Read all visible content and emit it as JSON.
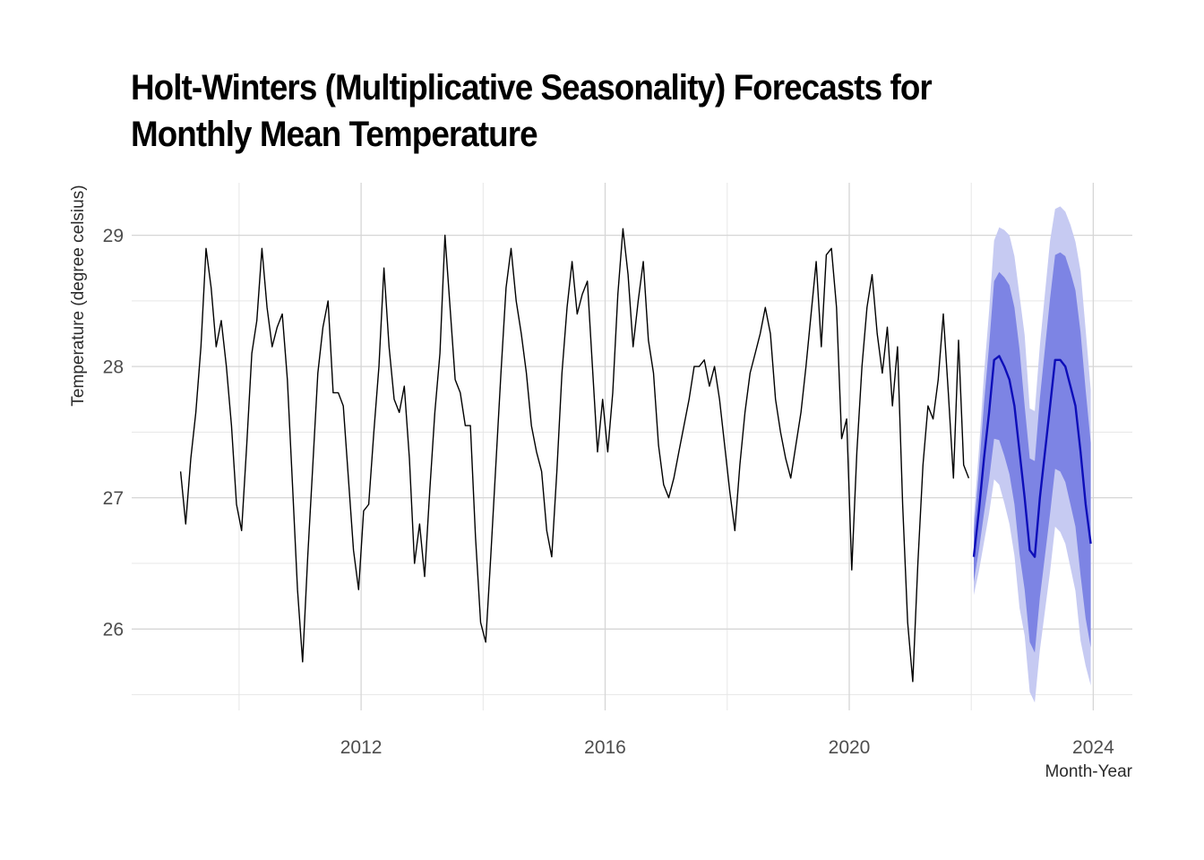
{
  "title": {
    "line1": "Holt-Winters (Multiplicative Seasonality) Forecasts for",
    "line2": "Monthly Mean Temperature",
    "full": "Holt-Winters (Multiplicative Seasonality) Forecasts for Monthly Mean Temperature"
  },
  "x_axis": {
    "title": "Month-Year",
    "tick_labels": [
      "2012",
      "2016",
      "2020",
      "2024"
    ],
    "tick_years": [
      2012,
      2016,
      2020,
      2024
    ],
    "minor_grid_years": [
      2010,
      2014,
      2018,
      2022
    ]
  },
  "y_axis": {
    "title": "Temperature (degree celsius)",
    "tick_labels": [
      "26",
      "27",
      "28",
      "29"
    ],
    "tick_values": [
      26,
      27,
      28,
      29
    ],
    "minor_grid_values": [
      25.5,
      26.5,
      27.5,
      28.5
    ]
  },
  "chart_data": {
    "type": "line",
    "title": "Holt-Winters (Multiplicative Seasonality) Forecasts for Monthly Mean Temperature",
    "xlabel": "Month-Year",
    "ylabel": "Temperature (degree celsius)",
    "xlim": [
      2008.24,
      2024.64
    ],
    "ylim": [
      25.38,
      29.4
    ],
    "grid": "on",
    "legend": "none",
    "x_ticks": [
      2012,
      2016,
      2020,
      2024
    ],
    "y_ticks": [
      26,
      27,
      28,
      29
    ],
    "historical": {
      "name": "observed-monthly-mean-temperature",
      "start": "2009-01",
      "frequency": "monthly",
      "values": [
        27.2,
        26.8,
        27.3,
        27.65,
        28.15,
        28.9,
        28.6,
        28.15,
        28.35,
        28.0,
        27.55,
        26.95,
        26.75,
        27.4,
        28.1,
        28.35,
        28.9,
        28.45,
        28.15,
        28.3,
        28.4,
        27.9,
        27.1,
        26.3,
        25.75,
        26.55,
        27.25,
        27.95,
        28.3,
        28.5,
        27.8,
        27.8,
        27.7,
        27.15,
        26.6,
        26.3,
        26.9,
        26.95,
        27.5,
        28.0,
        28.75,
        28.15,
        27.75,
        27.65,
        27.85,
        27.3,
        26.5,
        26.8,
        26.4,
        27.05,
        27.65,
        28.1,
        29.0,
        28.45,
        27.9,
        27.8,
        27.55,
        27.55,
        26.7,
        26.05,
        25.9,
        26.55,
        27.25,
        27.95,
        28.6,
        28.9,
        28.5,
        28.25,
        27.95,
        27.55,
        27.35,
        27.2,
        26.75,
        26.55,
        27.2,
        27.95,
        28.45,
        28.8,
        28.4,
        28.55,
        28.65,
        28.0,
        27.35,
        27.75,
        27.35,
        27.8,
        28.55,
        29.05,
        28.7,
        28.15,
        28.5,
        28.8,
        28.2,
        27.95,
        27.4,
        27.1,
        27.0,
        27.15,
        27.35,
        27.55,
        27.75,
        28.0,
        28.0,
        28.05,
        27.85,
        28.0,
        27.75,
        27.4,
        27.05,
        26.75,
        27.25,
        27.65,
        27.95,
        28.1,
        28.25,
        28.45,
        28.25,
        27.75,
        27.5,
        27.3,
        27.15,
        27.4,
        27.65,
        28.0,
        28.4,
        28.8,
        28.15,
        28.85,
        28.9,
        28.45,
        27.45,
        27.6,
        26.45,
        27.35,
        28.0,
        28.45,
        28.7,
        28.25,
        27.95,
        28.3,
        27.7,
        28.15,
        26.95,
        26.05,
        25.6,
        26.5,
        27.25,
        27.7,
        27.6,
        27.9,
        28.4,
        27.8,
        27.15,
        28.2,
        27.25,
        27.15
      ]
    },
    "forecast": {
      "name": "holt-winters-forecast",
      "start": "2022-01",
      "frequency": "monthly",
      "mean": [
        26.55,
        26.9,
        27.3,
        27.65,
        28.05,
        28.08,
        28.0,
        27.9,
        27.7,
        27.35,
        27.0,
        26.6,
        26.55,
        27.0,
        27.35,
        27.7,
        28.05,
        28.05,
        28.0,
        27.85,
        27.7,
        27.35,
        26.95,
        26.65
      ],
      "lo80": [
        26.36,
        26.6,
        26.88,
        27.14,
        27.45,
        27.44,
        27.32,
        27.18,
        26.95,
        26.57,
        26.3,
        25.9,
        25.82,
        26.24,
        26.56,
        26.88,
        27.22,
        27.2,
        27.12,
        26.95,
        26.78,
        26.41,
        26.08,
        25.86
      ],
      "hi80": [
        26.74,
        27.2,
        27.72,
        28.16,
        28.65,
        28.72,
        28.68,
        28.62,
        28.45,
        28.13,
        27.7,
        27.3,
        27.28,
        27.76,
        28.14,
        28.52,
        28.85,
        28.87,
        28.84,
        28.72,
        28.58,
        28.26,
        27.82,
        27.42
      ],
      "lo95": [
        26.26,
        26.44,
        26.66,
        26.88,
        27.14,
        27.1,
        26.96,
        26.8,
        26.56,
        26.16,
        25.95,
        25.52,
        25.44,
        25.84,
        26.14,
        26.44,
        26.78,
        26.74,
        26.65,
        26.47,
        26.29,
        25.91,
        25.72,
        25.57
      ],
      "hi95": [
        26.84,
        27.36,
        27.94,
        28.42,
        28.96,
        29.06,
        29.04,
        29.0,
        28.84,
        28.54,
        28.24,
        27.68,
        27.66,
        28.16,
        28.56,
        28.96,
        29.2,
        29.22,
        29.18,
        29.08,
        28.95,
        28.73,
        28.28,
        27.82
      ],
      "levels": [
        80,
        95
      ]
    },
    "colors": {
      "historical_line": "#000000",
      "forecast_line": "#0d0db9",
      "band_80": "#7d84e4",
      "band_95": "#c6caf2",
      "gridline_major": "#d6d6d6",
      "gridline_minor": "#e6e6e6",
      "tick_label": "#4d4d4d",
      "background": "#ffffff"
    }
  }
}
